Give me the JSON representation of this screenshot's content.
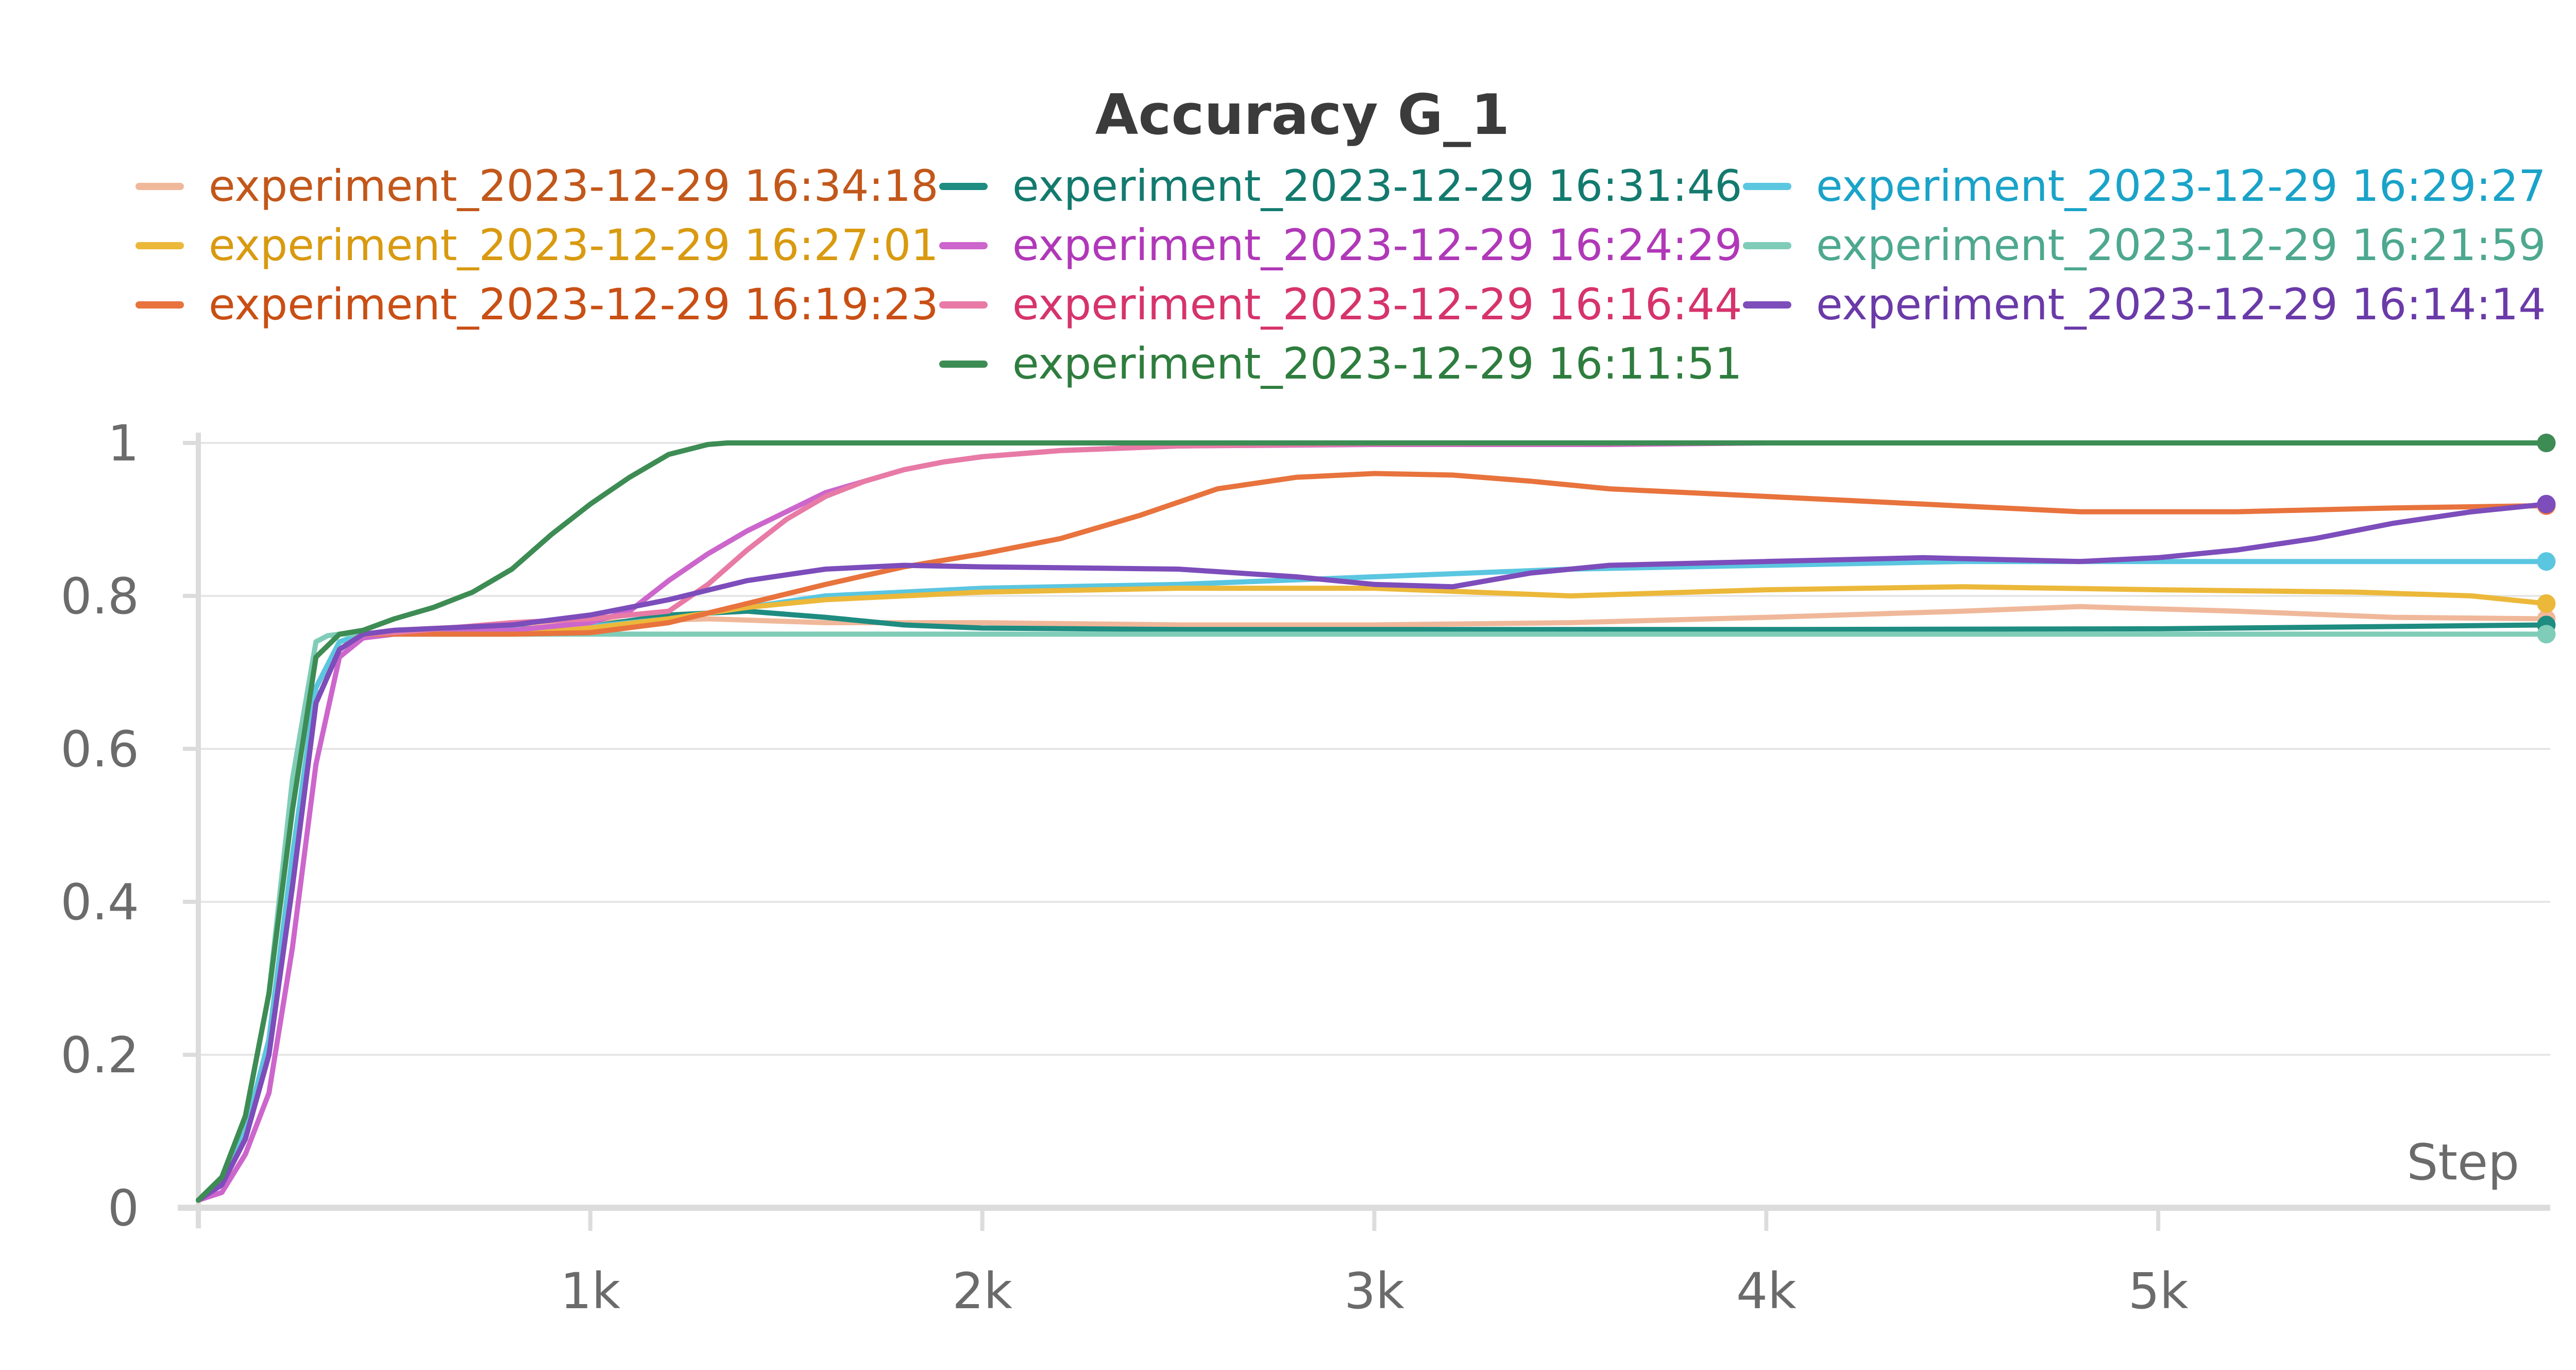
{
  "chart_data": {
    "type": "line",
    "title": "Accuracy G_1",
    "xlabel": "Step",
    "ylabel": "",
    "xlim": [
      0,
      6000
    ],
    "ylim": [
      0,
      1
    ],
    "x_ticks": [
      {
        "value": 1000,
        "label": "1k"
      },
      {
        "value": 2000,
        "label": "2k"
      },
      {
        "value": 3000,
        "label": "3k"
      },
      {
        "value": 4000,
        "label": "4k"
      },
      {
        "value": 5000,
        "label": "5k"
      }
    ],
    "y_ticks": [
      {
        "value": 0,
        "label": "0"
      },
      {
        "value": 0.2,
        "label": "0.2"
      },
      {
        "value": 0.4,
        "label": "0.4"
      },
      {
        "value": 0.6,
        "label": "0.6"
      },
      {
        "value": 0.8,
        "label": "0.8"
      },
      {
        "value": 1,
        "label": "1"
      }
    ],
    "grid": true,
    "legend_position": "top",
    "series": [
      {
        "name": "experiment_2023-12-29 16:34:18",
        "color": "#f0b89a",
        "label_color": "#c2571a",
        "x": [
          0,
          60,
          120,
          180,
          240,
          300,
          360,
          420,
          500,
          700,
          1000,
          1300,
          1600,
          2000,
          2500,
          3000,
          3500,
          4000,
          4500,
          4800,
          5200,
          5600,
          5990
        ],
        "y": [
          0.01,
          0.03,
          0.09,
          0.2,
          0.42,
          0.66,
          0.73,
          0.75,
          0.755,
          0.76,
          0.765,
          0.77,
          0.765,
          0.765,
          0.762,
          0.762,
          0.765,
          0.772,
          0.78,
          0.786,
          0.78,
          0.772,
          0.77
        ]
      },
      {
        "name": "experiment_2023-12-29 16:31:46",
        "color": "#1e8c80",
        "label_color": "#137a6e",
        "x": [
          0,
          60,
          120,
          180,
          240,
          300,
          360,
          420,
          500,
          700,
          1000,
          1200,
          1400,
          1600,
          1800,
          2000,
          2500,
          3000,
          4000,
          5000,
          5990
        ],
        "y": [
          0.01,
          0.03,
          0.1,
          0.22,
          0.46,
          0.68,
          0.74,
          0.75,
          0.753,
          0.755,
          0.76,
          0.775,
          0.78,
          0.772,
          0.762,
          0.758,
          0.756,
          0.756,
          0.756,
          0.757,
          0.762
        ]
      },
      {
        "name": "experiment_2023-12-29 16:29:27",
        "color": "#5bc6e0",
        "label_color": "#1aa3c8",
        "x": [
          0,
          60,
          120,
          180,
          240,
          300,
          360,
          420,
          500,
          800,
          1000,
          1200,
          1400,
          1600,
          2000,
          2500,
          3000,
          3500,
          4000,
          4500,
          5000,
          5990
        ],
        "y": [
          0.01,
          0.03,
          0.1,
          0.22,
          0.46,
          0.68,
          0.74,
          0.75,
          0.753,
          0.756,
          0.76,
          0.77,
          0.785,
          0.8,
          0.81,
          0.815,
          0.825,
          0.835,
          0.84,
          0.845,
          0.845,
          0.845
        ]
      },
      {
        "name": "experiment_2023-12-29 16:27:01",
        "color": "#ecb83a",
        "label_color": "#d99a10",
        "x": [
          0,
          60,
          120,
          180,
          240,
          300,
          360,
          420,
          500,
          800,
          1000,
          1200,
          1400,
          1600,
          1800,
          2000,
          2500,
          3000,
          3500,
          4000,
          4500,
          5000,
          5500,
          5800,
          5990
        ],
        "y": [
          0.01,
          0.03,
          0.09,
          0.2,
          0.42,
          0.66,
          0.73,
          0.75,
          0.752,
          0.754,
          0.758,
          0.77,
          0.785,
          0.795,
          0.8,
          0.805,
          0.81,
          0.81,
          0.8,
          0.808,
          0.812,
          0.808,
          0.805,
          0.8,
          0.79
        ]
      },
      {
        "name": "experiment_2023-12-29 16:24:29",
        "color": "#cc66cc",
        "label_color": "#b038b8",
        "x": [
          0,
          60,
          120,
          180,
          240,
          300,
          360,
          420,
          500,
          800,
          1000,
          1100,
          1200,
          1300,
          1400,
          1500,
          1600,
          1700,
          1800,
          1900,
          2000,
          2200,
          2500,
          3000,
          3600,
          4000,
          5990
        ],
        "y": [
          0.01,
          0.02,
          0.07,
          0.15,
          0.34,
          0.58,
          0.72,
          0.745,
          0.75,
          0.755,
          0.765,
          0.78,
          0.82,
          0.855,
          0.885,
          0.91,
          0.935,
          0.95,
          0.965,
          0.975,
          0.982,
          0.99,
          0.996,
          0.998,
          0.998,
          1,
          1
        ]
      },
      {
        "name": "experiment_2023-12-29 16:21:59",
        "color": "#7fcdb8",
        "label_color": "#4da88f",
        "x": [
          0,
          60,
          120,
          180,
          240,
          300,
          330,
          360,
          420,
          500,
          1000,
          2000,
          3000,
          4000,
          5000,
          5990
        ],
        "y": [
          0.01,
          0.04,
          0.12,
          0.28,
          0.56,
          0.74,
          0.748,
          0.75,
          0.75,
          0.75,
          0.75,
          0.75,
          0.75,
          0.75,
          0.75,
          0.75
        ]
      },
      {
        "name": "experiment_2023-12-29 16:19:23",
        "color": "#e8733d",
        "label_color": "#c94f14",
        "x": [
          0,
          60,
          120,
          180,
          240,
          300,
          360,
          420,
          500,
          800,
          1000,
          1200,
          1400,
          1600,
          1800,
          2000,
          2200,
          2400,
          2600,
          2800,
          3000,
          3200,
          3400,
          3600,
          3800,
          4000,
          4400,
          4800,
          5200,
          5600,
          5990
        ],
        "y": [
          0.01,
          0.03,
          0.09,
          0.2,
          0.42,
          0.66,
          0.73,
          0.75,
          0.75,
          0.75,
          0.752,
          0.765,
          0.79,
          0.815,
          0.838,
          0.855,
          0.875,
          0.905,
          0.94,
          0.955,
          0.96,
          0.958,
          0.95,
          0.94,
          0.935,
          0.93,
          0.92,
          0.91,
          0.91,
          0.915,
          0.918
        ]
      },
      {
        "name": "experiment_2023-12-29 16:16:44",
        "color": "#e87aa6",
        "label_color": "#d6336c",
        "x": [
          0,
          60,
          120,
          180,
          240,
          300,
          360,
          420,
          500,
          800,
          1000,
          1200,
          1300,
          1400,
          1500,
          1600,
          1700,
          1800,
          1900,
          2000,
          2200,
          2500,
          3000,
          4000,
          5990
        ],
        "y": [
          0.01,
          0.03,
          0.09,
          0.2,
          0.42,
          0.66,
          0.73,
          0.75,
          0.752,
          0.765,
          0.77,
          0.78,
          0.815,
          0.86,
          0.9,
          0.93,
          0.95,
          0.965,
          0.975,
          0.982,
          0.99,
          0.996,
          0.999,
          1,
          1
        ]
      },
      {
        "name": "experiment_2023-12-29 16:14:14",
        "color": "#7c4dbb",
        "label_color": "#6a3aa8",
        "x": [
          0,
          60,
          120,
          180,
          240,
          300,
          360,
          420,
          500,
          800,
          1000,
          1200,
          1400,
          1600,
          1800,
          2000,
          2500,
          2800,
          3000,
          3200,
          3400,
          3600,
          4000,
          4400,
          4800,
          5000,
          5200,
          5400,
          5600,
          5800,
          5990
        ],
        "y": [
          0.01,
          0.03,
          0.09,
          0.2,
          0.42,
          0.66,
          0.73,
          0.75,
          0.755,
          0.762,
          0.775,
          0.795,
          0.82,
          0.835,
          0.84,
          0.838,
          0.835,
          0.825,
          0.815,
          0.812,
          0.83,
          0.84,
          0.845,
          0.85,
          0.845,
          0.85,
          0.86,
          0.875,
          0.895,
          0.91,
          0.92
        ]
      },
      {
        "name": "experiment_2023-12-29 16:11:51",
        "color": "#3d8c54",
        "label_color": "#2e7d3e",
        "x": [
          0,
          60,
          120,
          180,
          240,
          300,
          360,
          420,
          500,
          600,
          700,
          800,
          900,
          1000,
          1100,
          1200,
          1300,
          1350,
          1400,
          1500,
          2000,
          3000,
          4000,
          5000,
          5990
        ],
        "y": [
          0.01,
          0.04,
          0.12,
          0.28,
          0.52,
          0.72,
          0.75,
          0.755,
          0.77,
          0.785,
          0.805,
          0.835,
          0.88,
          0.92,
          0.955,
          0.985,
          0.998,
          1,
          1,
          1,
          1,
          1,
          1,
          1,
          1
        ]
      }
    ]
  }
}
